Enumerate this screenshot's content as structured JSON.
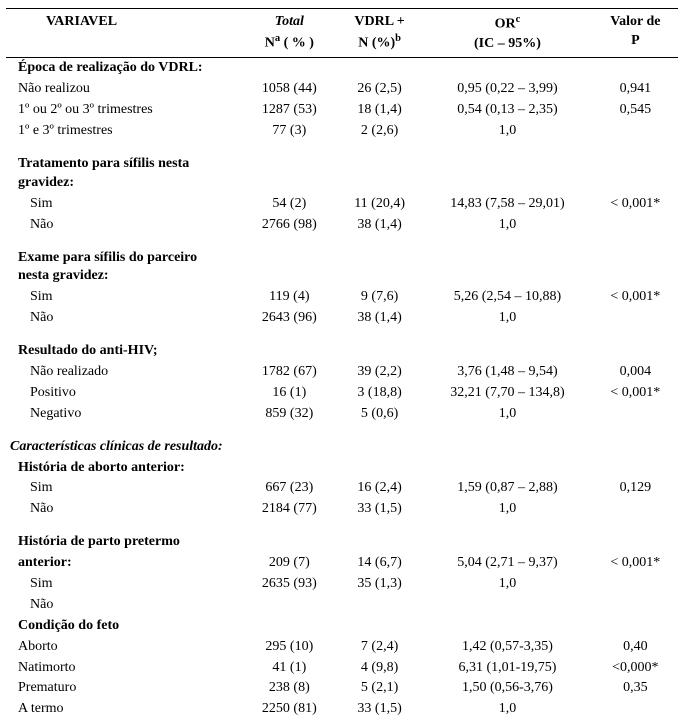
{
  "header": {
    "variavel": "VARIAVEL",
    "total": "Total",
    "total_sub": "N",
    "total_sup": "a",
    "total_sub2": "  ( % )",
    "vdrl": "VDRL +",
    "vdrl_sub": "N (%)",
    "vdrl_sup": "b",
    "or": "OR",
    "or_sup": "c",
    "or_sub": "(IC – 95%)",
    "p": "Valor de",
    "p_sub": "P"
  },
  "groups": [
    {
      "title": "Época de realização do VDRL",
      "title_suffix": ":",
      "indent": "sub1",
      "rows": [
        {
          "label": "Não realizou",
          "indent": "sub1",
          "total": "1058 (44)",
          "vdrl": "26 (2,5)",
          "or": "0,95 (0,22 – 3,99)",
          "p": "0,941"
        },
        {
          "label": "1º ou 2º ou 3º trimestres",
          "indent": "sub1",
          "total": "1287 (53)",
          "vdrl": "18 (1,4)",
          "or": "0,54 (0,13 – 2,35)",
          "p": "0,545"
        },
        {
          "label": "1º e 3º  trimestres",
          "indent": "sub1",
          "total": "77 (3)",
          "vdrl": "2 (2,6)",
          "or": "1,0",
          "p": ""
        }
      ]
    },
    {
      "title": "Tratamento para sífilis nesta gravidez:",
      "multiline": true,
      "indent": "sub1",
      "rows": [
        {
          "label": "Sim",
          "indent": "sub2",
          "total": "54 (2)",
          "vdrl": "11 (20,4)",
          "or": "14,83 (7,58 – 29,01)",
          "p": "< 0,001*"
        },
        {
          "label": "Não",
          "indent": "sub2",
          "total": "2766 (98)",
          "vdrl": "38 (1,4)",
          "or": "1,0",
          "p": ""
        }
      ]
    },
    {
      "title": "Exame para sífilis do parceiro nesta gravidez:",
      "multiline": true,
      "indent": "sub1",
      "rows": [
        {
          "label": "Sim",
          "indent": "sub2",
          "total": "119 (4)",
          "vdrl": "9 (7,6)",
          "or": "5,26 (2,54 – 10,88)",
          "p": "< 0,001*"
        },
        {
          "label": "Não",
          "indent": "sub2",
          "total": "2643 (96)",
          "vdrl": "38 (1,4)",
          "or": "1,0",
          "p": ""
        }
      ]
    },
    {
      "title": "Resultado do anti-HIV;",
      "indent": "sub1",
      "rows": [
        {
          "label": "Não realizado",
          "indent": "sub2",
          "total": "1782 (67)",
          "vdrl": "39 (2,2)",
          "or": "3,76 (1,48 – 9,54)",
          "p": "0,004"
        },
        {
          "label": "Positivo",
          "indent": "sub2",
          "total": "16 (1)",
          "vdrl": "3 (18,8)",
          "or": "32,21 (7,70 – 134,8)",
          "p": "< 0,001*"
        },
        {
          "label": "Negativo",
          "indent": "sub2",
          "total": "859 (32)",
          "vdrl": "5 (0,6)",
          "or": "1,0",
          "p": ""
        }
      ]
    },
    {
      "title": "Características clínicas de resultado:",
      "ital": true,
      "indent": "",
      "rows": []
    },
    {
      "title": "História de aborto anterior:",
      "indent": "sub1",
      "nospace": true,
      "rows": [
        {
          "label": "Sim",
          "indent": "sub2",
          "total": "667 (23)",
          "vdrl": "16 (2,4)",
          "or": "1,59 (0,87 – 2,88)",
          "p": "0,129"
        },
        {
          "label": "Não",
          "indent": "sub2",
          "total": "2184 (77)",
          "vdrl": "33 (1,5)",
          "or": "1,0",
          "p": ""
        }
      ]
    },
    {
      "title": "História de parto pretermo anterior:",
      "multiline": true,
      "indent": "sub1",
      "rows_mover": true,
      "rows": [
        {
          "label": "Sim",
          "indent": "sub2",
          "total": "209 (7)",
          "vdrl": "14 (6,7)",
          "or": "5,04 (2,71 – 9,37)",
          "p": "< 0,001*",
          "shift": true
        },
        {
          "label": "Não",
          "indent": "sub2",
          "total": "2635 (93)",
          "vdrl": "35 (1,3)",
          "or": "1,0",
          "p": "",
          "shift": true
        }
      ]
    },
    {
      "title": "Condição do feto",
      "indent": "sub1",
      "nospace": true,
      "rows": [
        {
          "label": "Aborto",
          "indent": "sub1",
          "total": "295 (10)",
          "vdrl": "7 (2,4)",
          "or": "1,42 (0,57-3,35)",
          "p": "0,40"
        },
        {
          "label": "Natimorto",
          "indent": "sub1",
          "total": "41 (1)",
          "vdrl": "4 (9,8)",
          "or": "6,31 (1,01-19,75)",
          "p": "<0,000*"
        },
        {
          "label": "Prematuro",
          "indent": "sub1",
          "total": "238 (8)",
          "vdrl": "5 (2,1)",
          "or": "1,50  (0,56-3,76)",
          "p": "0,35"
        },
        {
          "label": "A termo",
          "indent": "sub1",
          "total": "2250 (81)",
          "vdrl": "33 (1,5)",
          "or": "1,0",
          "p": ""
        }
      ]
    }
  ]
}
